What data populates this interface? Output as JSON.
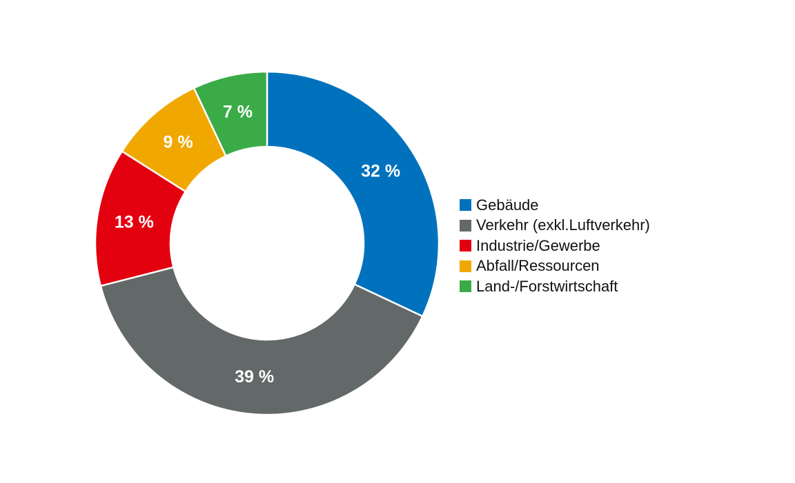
{
  "chart_data": {
    "type": "pie",
    "style": "donut",
    "categories": [
      "Gebäude",
      "Verkehr (exkl.Luftverkehr)",
      "Industrie/Gewerbe",
      "Abfall/Ressourcen",
      "Land-/Forstwirtschaft"
    ],
    "values": [
      32,
      39,
      13,
      9,
      7
    ],
    "value_labels": [
      "32 %",
      "39 %",
      "13 %",
      "9 %",
      "7 %"
    ],
    "colors": [
      "#0072bd",
      "#636869",
      "#e3000f",
      "#f0a800",
      "#3aab47"
    ],
    "start_angle_deg": 0,
    "direction": "clockwise",
    "legend_position": "right"
  }
}
